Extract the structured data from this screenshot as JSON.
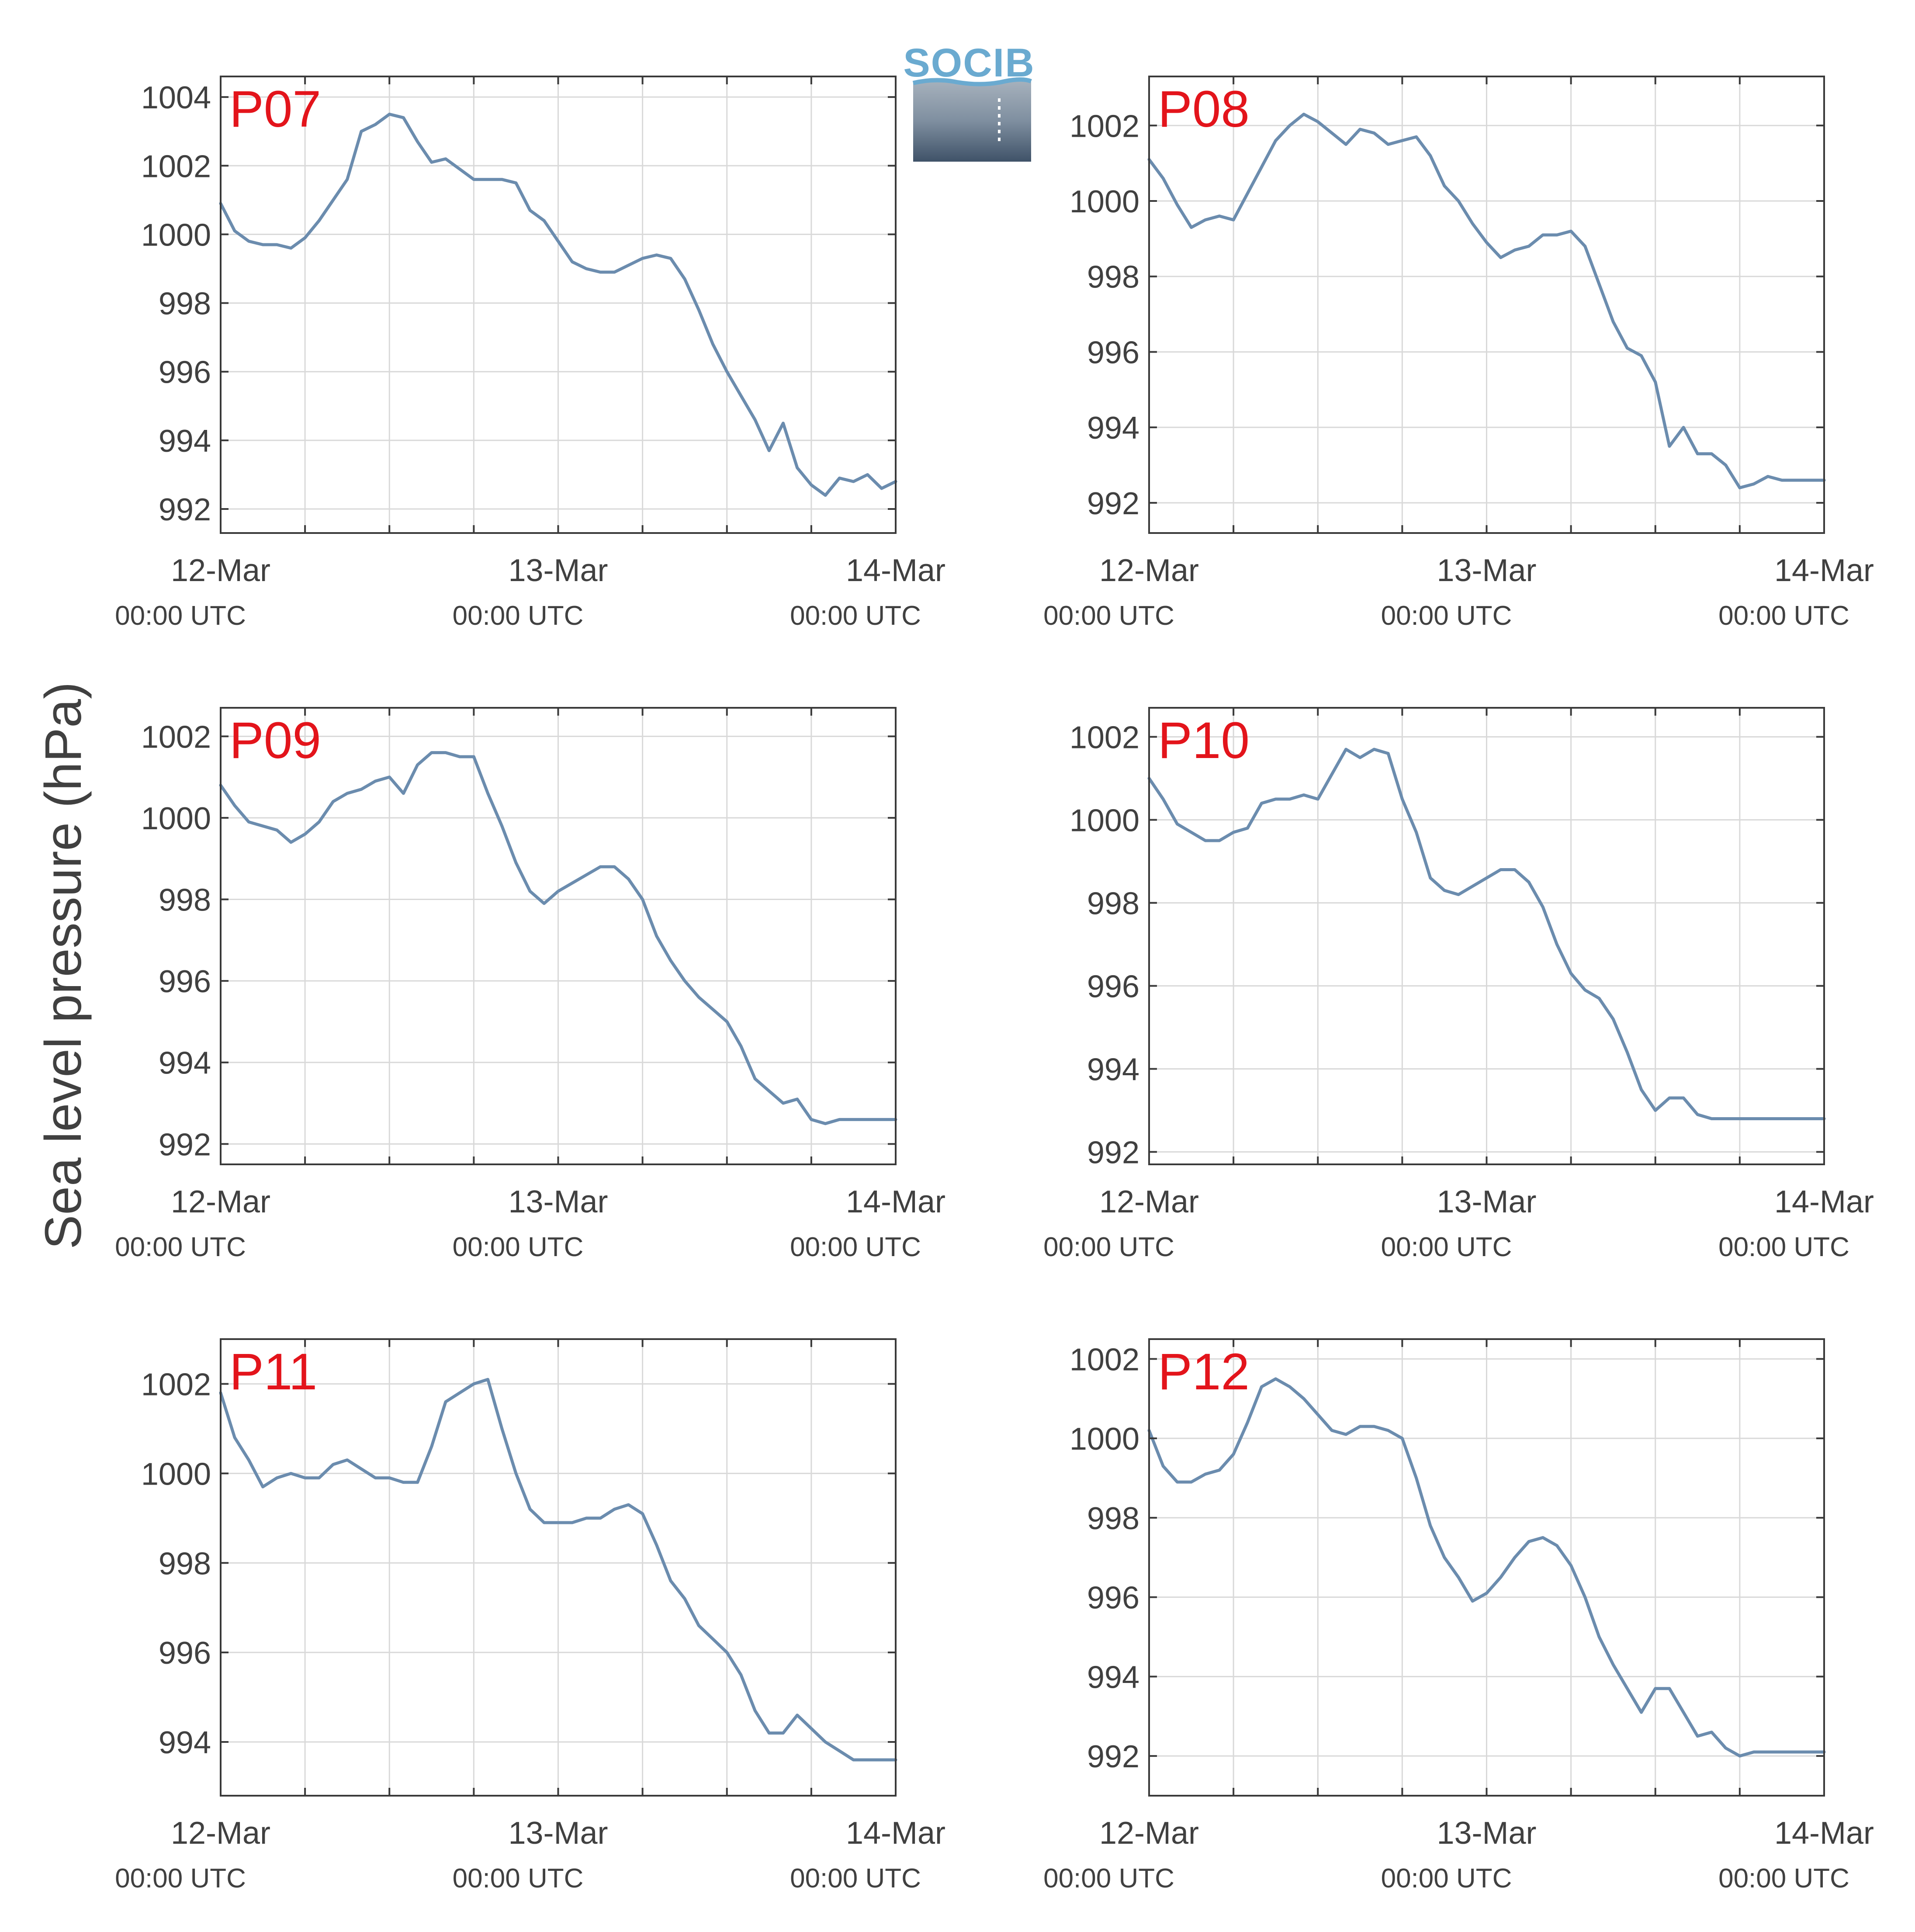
{
  "figure": {
    "ylabel": "Sea level pressure (hPa)",
    "logo_text": "SOCIB"
  },
  "style": {
    "line_color": "#6b8cae",
    "station_label_color": "#e3141b",
    "grid_color": "#d9d9d9",
    "axis_color": "#3a3a3a",
    "text_color": "#404040"
  },
  "chart_data": [
    {
      "type": "line",
      "station": "P07",
      "x_tick_labels": [
        [
          "12-Mar",
          "00:00 UTC"
        ],
        [
          "13-Mar",
          "00:00 UTC"
        ],
        [
          "14-Mar",
          "00:00 UTC"
        ]
      ],
      "xlim": [
        "2022-03-12 00:00",
        "2022-03-14 00:00"
      ],
      "y_ticks": [
        992,
        994,
        996,
        998,
        1000,
        1002,
        1004
      ],
      "ylim": [
        991.3,
        1004.6
      ],
      "grid": true,
      "series": [
        {
          "x_hours": [
            0,
            1,
            2,
            3,
            4,
            5,
            6,
            7,
            8,
            9,
            10,
            11,
            12,
            13,
            14,
            15,
            16,
            17,
            18,
            19,
            20,
            21,
            22,
            23,
            24,
            25,
            26,
            27,
            28,
            29,
            30,
            31,
            32,
            33,
            34,
            35,
            36,
            37,
            38,
            39,
            40,
            41,
            42,
            43,
            44,
            45,
            46,
            47,
            48
          ],
          "values": [
            1000.9,
            1000.1,
            999.8,
            999.7,
            999.7,
            999.6,
            999.9,
            1000.4,
            1001.0,
            1001.6,
            1003.0,
            1003.2,
            1003.5,
            1003.4,
            1002.7,
            1002.1,
            1002.2,
            1001.9,
            1001.6,
            1001.6,
            1001.6,
            1001.5,
            1000.7,
            1000.4,
            999.8,
            999.2,
            999.0,
            998.9,
            998.9,
            999.1,
            999.3,
            999.4,
            999.3,
            998.7,
            997.8,
            996.8,
            996.0,
            995.3,
            994.6,
            993.7,
            994.5,
            993.2,
            992.7,
            992.4,
            992.9,
            992.8,
            993.0,
            992.6,
            992.8
          ]
        }
      ]
    },
    {
      "type": "line",
      "station": "P08",
      "x_tick_labels": [
        [
          "12-Mar",
          "00:00 UTC"
        ],
        [
          "13-Mar",
          "00:00 UTC"
        ],
        [
          "14-Mar",
          "00:00 UTC"
        ]
      ],
      "xlim": [
        "2022-03-12 00:00",
        "2022-03-14 00:00"
      ],
      "y_ticks": [
        992,
        994,
        996,
        998,
        1000,
        1002
      ],
      "ylim": [
        991.2,
        1003.3
      ],
      "grid": true,
      "series": [
        {
          "x_hours": [
            0,
            1,
            2,
            3,
            4,
            5,
            6,
            7,
            8,
            9,
            10,
            11,
            12,
            13,
            14,
            15,
            16,
            17,
            18,
            19,
            20,
            21,
            22,
            23,
            24,
            25,
            26,
            27,
            28,
            29,
            30,
            31,
            32,
            33,
            34,
            35,
            36,
            37,
            38,
            39,
            40,
            41,
            42,
            43,
            44,
            45,
            46,
            47,
            48
          ],
          "values": [
            1001.1,
            1000.6,
            999.9,
            999.3,
            999.5,
            999.6,
            999.5,
            1000.2,
            1000.9,
            1001.6,
            1002.0,
            1002.3,
            1002.1,
            1001.8,
            1001.5,
            1001.9,
            1001.8,
            1001.5,
            1001.6,
            1001.7,
            1001.2,
            1000.4,
            1000.0,
            999.4,
            998.9,
            998.5,
            998.7,
            998.8,
            999.1,
            999.1,
            999.2,
            998.8,
            997.8,
            996.8,
            996.1,
            995.9,
            995.2,
            993.5,
            994.0,
            993.3,
            993.3,
            993.0,
            992.4,
            992.5,
            992.7,
            992.6,
            992.6,
            992.6,
            992.6
          ]
        }
      ]
    },
    {
      "type": "line",
      "station": "P09",
      "x_tick_labels": [
        [
          "12-Mar",
          "00:00 UTC"
        ],
        [
          "13-Mar",
          "00:00 UTC"
        ],
        [
          "14-Mar",
          "00:00 UTC"
        ]
      ],
      "xlim": [
        "2022-03-12 00:00",
        "2022-03-14 00:00"
      ],
      "y_ticks": [
        992,
        994,
        996,
        998,
        1000,
        1002
      ],
      "ylim": [
        991.5,
        1002.7
      ],
      "grid": true,
      "series": [
        {
          "x_hours": [
            0,
            1,
            2,
            3,
            4,
            5,
            6,
            7,
            8,
            9,
            10,
            11,
            12,
            13,
            14,
            15,
            16,
            17,
            18,
            19,
            20,
            21,
            22,
            23,
            24,
            25,
            26,
            27,
            28,
            29,
            30,
            31,
            32,
            33,
            34,
            35,
            36,
            37,
            38,
            39,
            40,
            41,
            42,
            43,
            44,
            45,
            46,
            47,
            48
          ],
          "values": [
            1000.8,
            1000.3,
            999.9,
            999.8,
            999.7,
            999.4,
            999.6,
            999.9,
            1000.4,
            1000.6,
            1000.7,
            1000.9,
            1001.0,
            1000.6,
            1001.3,
            1001.6,
            1001.6,
            1001.5,
            1001.5,
            1000.6,
            999.8,
            998.9,
            998.2,
            997.9,
            998.2,
            998.4,
            998.6,
            998.8,
            998.8,
            998.5,
            998.0,
            997.1,
            996.5,
            996.0,
            995.6,
            995.3,
            995.0,
            994.4,
            993.6,
            993.3,
            993.0,
            993.1,
            992.6,
            992.5,
            992.6,
            992.6,
            992.6,
            992.6,
            992.6
          ]
        }
      ]
    },
    {
      "type": "line",
      "station": "P10",
      "x_tick_labels": [
        [
          "12-Mar",
          "00:00 UTC"
        ],
        [
          "13-Mar",
          "00:00 UTC"
        ],
        [
          "14-Mar",
          "00:00 UTC"
        ]
      ],
      "xlim": [
        "2022-03-12 00:00",
        "2022-03-14 00:00"
      ],
      "y_ticks": [
        992,
        994,
        996,
        998,
        1000,
        1002
      ],
      "ylim": [
        991.7,
        1002.7
      ],
      "grid": true,
      "series": [
        {
          "x_hours": [
            0,
            1,
            2,
            3,
            4,
            5,
            6,
            7,
            8,
            9,
            10,
            11,
            12,
            13,
            14,
            15,
            16,
            17,
            18,
            19,
            20,
            21,
            22,
            23,
            24,
            25,
            26,
            27,
            28,
            29,
            30,
            31,
            32,
            33,
            34,
            35,
            36,
            37,
            38,
            39,
            40,
            41,
            42,
            43,
            44,
            45,
            46,
            47,
            48
          ],
          "values": [
            1001.0,
            1000.5,
            999.9,
            999.7,
            999.5,
            999.5,
            999.7,
            999.8,
            1000.4,
            1000.5,
            1000.5,
            1000.6,
            1000.5,
            1001.1,
            1001.7,
            1001.5,
            1001.7,
            1001.6,
            1000.5,
            999.7,
            998.6,
            998.3,
            998.2,
            998.4,
            998.6,
            998.8,
            998.8,
            998.5,
            997.9,
            997.0,
            996.3,
            995.9,
            995.7,
            995.2,
            994.4,
            993.5,
            993.0,
            993.3,
            993.3,
            992.9,
            992.8,
            992.8,
            992.8,
            992.8,
            992.8,
            992.8,
            992.8,
            992.8,
            992.8
          ]
        }
      ]
    },
    {
      "type": "line",
      "station": "P11",
      "x_tick_labels": [
        [
          "12-Mar",
          "00:00 UTC"
        ],
        [
          "13-Mar",
          "00:00 UTC"
        ],
        [
          "14-Mar",
          "00:00 UTC"
        ]
      ],
      "xlim": [
        "2022-03-12 00:00",
        "2022-03-14 00:00"
      ],
      "y_ticks": [
        994,
        996,
        998,
        1000,
        1002
      ],
      "ylim": [
        992.8,
        1003.0
      ],
      "grid": true,
      "series": [
        {
          "x_hours": [
            0,
            1,
            2,
            3,
            4,
            5,
            6,
            7,
            8,
            9,
            10,
            11,
            12,
            13,
            14,
            15,
            16,
            17,
            18,
            19,
            20,
            21,
            22,
            23,
            24,
            25,
            26,
            27,
            28,
            29,
            30,
            31,
            32,
            33,
            34,
            35,
            36,
            37,
            38,
            39,
            40,
            41,
            42,
            43,
            44,
            45,
            46,
            47,
            48
          ],
          "values": [
            1001.8,
            1000.8,
            1000.3,
            999.7,
            999.9,
            1000.0,
            999.9,
            999.9,
            1000.2,
            1000.3,
            1000.1,
            999.9,
            999.9,
            999.8,
            999.8,
            1000.6,
            1001.6,
            1001.8,
            1002.0,
            1002.1,
            1001.0,
            1000.0,
            999.2,
            998.9,
            998.9,
            998.9,
            999.0,
            999.0,
            999.2,
            999.3,
            999.1,
            998.4,
            997.6,
            997.2,
            996.6,
            996.3,
            996.0,
            995.5,
            994.7,
            994.2,
            994.2,
            994.6,
            994.3,
            994.0,
            993.8,
            993.6,
            993.6,
            993.6,
            993.6
          ]
        }
      ]
    },
    {
      "type": "line",
      "station": "P12",
      "x_tick_labels": [
        [
          "12-Mar",
          "00:00 UTC"
        ],
        [
          "13-Mar",
          "00:00 UTC"
        ],
        [
          "14-Mar",
          "00:00 UTC"
        ]
      ],
      "xlim": [
        "2022-03-12 00:00",
        "2022-03-14 00:00"
      ],
      "y_ticks": [
        992,
        994,
        996,
        998,
        1000,
        1002
      ],
      "ylim": [
        991.0,
        1002.5
      ],
      "grid": true,
      "series": [
        {
          "x_hours": [
            0,
            1,
            2,
            3,
            4,
            5,
            6,
            7,
            8,
            9,
            10,
            11,
            12,
            13,
            14,
            15,
            16,
            17,
            18,
            19,
            20,
            21,
            22,
            23,
            24,
            25,
            26,
            27,
            28,
            29,
            30,
            31,
            32,
            33,
            34,
            35,
            36,
            37,
            38,
            39,
            40,
            41,
            42,
            43,
            44,
            45,
            46,
            47,
            48
          ],
          "values": [
            1000.2,
            999.3,
            998.9,
            998.9,
            999.1,
            999.2,
            999.6,
            1000.4,
            1001.3,
            1001.5,
            1001.3,
            1001.0,
            1000.6,
            1000.2,
            1000.1,
            1000.3,
            1000.3,
            1000.2,
            1000.0,
            999.0,
            997.8,
            997.0,
            996.5,
            995.9,
            996.1,
            996.5,
            997.0,
            997.4,
            997.5,
            997.3,
            996.8,
            996.0,
            995.0,
            994.3,
            993.7,
            993.1,
            993.7,
            993.7,
            993.1,
            992.5,
            992.6,
            992.2,
            992.0,
            992.1,
            992.1,
            992.1,
            992.1,
            992.1,
            992.1
          ]
        }
      ]
    }
  ]
}
